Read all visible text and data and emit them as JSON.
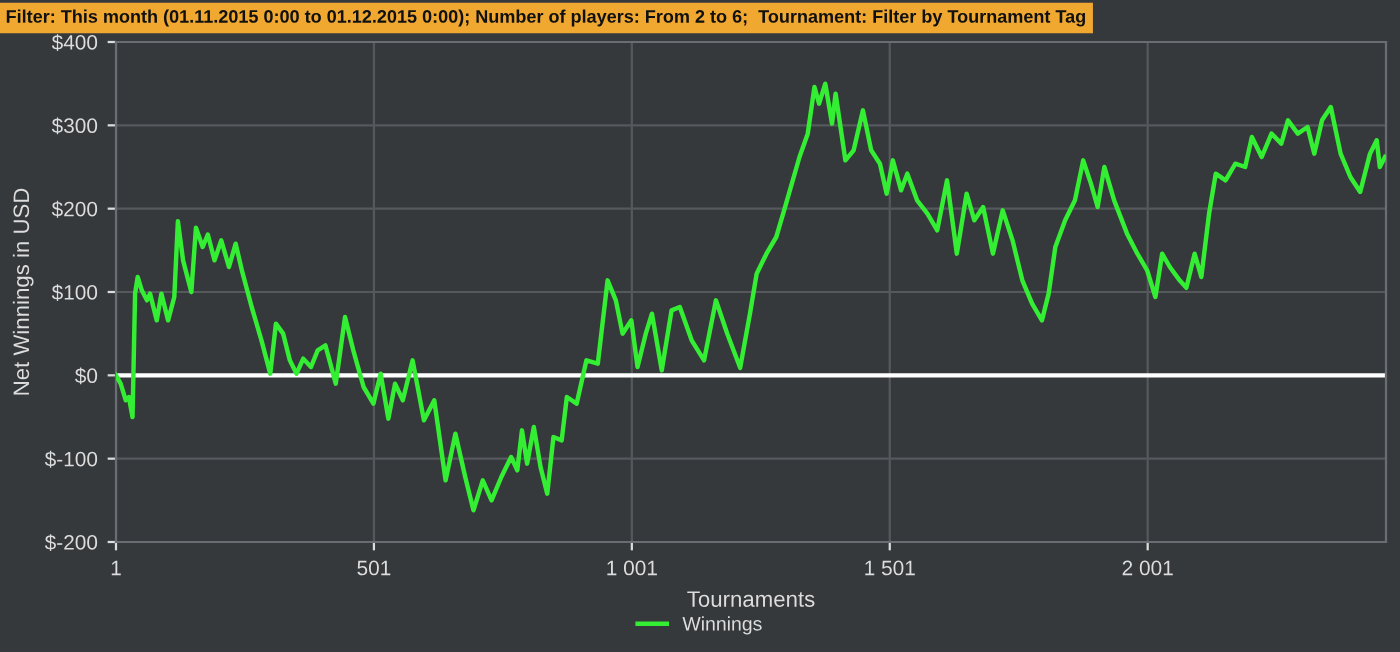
{
  "chart_data": {
    "type": "line",
    "title": "Filter: This month (01.11.2015 0:00 to 01.12.2015 0:00); Number of players: From 2 to 6;  Tournament: Filter by Tournament Tag",
    "xlabel": "Tournaments",
    "ylabel": "Net Winnings in USD",
    "series": [
      {
        "name": "Winnings",
        "color": "#33ee33",
        "x": [
          1,
          10,
          20,
          26,
          33,
          38,
          43,
          51,
          61,
          67,
          80,
          89,
          102,
          114,
          121,
          131,
          147,
          156,
          169,
          179,
          192,
          205,
          220,
          233,
          245,
          264,
          283,
          300,
          311,
          325,
          338,
          351,
          364,
          379,
          392,
          407,
          427,
          445,
          461,
          481,
          500,
          514,
          529,
          542,
          557,
          576,
          598,
          618,
          640,
          659,
          678,
          694,
          712,
          729,
          748,
          767,
          779,
          788,
          798,
          811,
          824,
          837,
          849,
          865,
          875,
          894,
          913,
          935,
          954,
          970,
          983,
          1000,
          1012,
          1028,
          1040,
          1059,
          1078,
          1094,
          1117,
          1141,
          1164,
          1186,
          1211,
          1230,
          1243,
          1262,
          1281,
          1300,
          1326,
          1342,
          1355,
          1364,
          1376,
          1389,
          1396,
          1415,
          1431,
          1449,
          1465,
          1482,
          1495,
          1507,
          1523,
          1535,
          1554,
          1574,
          1593,
          1612,
          1631,
          1650,
          1665,
          1682,
          1701,
          1720,
          1739,
          1758,
          1777,
          1796,
          1809,
          1822,
          1841,
          1860,
          1876,
          1891,
          1904,
          1917,
          1936,
          1961,
          1981,
          2000,
          2016,
          2029,
          2044,
          2063,
          2076,
          2092,
          2105,
          2120,
          2133,
          2152,
          2171,
          2190,
          2203,
          2222,
          2241,
          2260,
          2273,
          2292,
          2311,
          2324,
          2339,
          2356,
          2375,
          2394,
          2413,
          2432,
          2445,
          2451,
          2461
        ],
        "values": [
          0,
          -10,
          -30,
          -26,
          -50,
          98,
          118,
          102,
          90,
          98,
          66,
          98,
          66,
          94,
          185,
          138,
          100,
          177,
          154,
          169,
          138,
          162,
          130,
          158,
          126,
          82,
          42,
          2,
          62,
          50,
          18,
          2,
          20,
          10,
          30,
          36,
          -10,
          70,
          30,
          -14,
          -34,
          2,
          -52,
          -10,
          -30,
          18,
          -54,
          -30,
          -126,
          -70,
          -122,
          -162,
          -126,
          -150,
          -122,
          -98,
          -114,
          -66,
          -106,
          -62,
          -110,
          -142,
          -74,
          -78,
          -26,
          -34,
          18,
          14,
          114,
          90,
          50,
          66,
          10,
          50,
          74,
          6,
          78,
          82,
          42,
          18,
          90,
          50,
          9,
          74,
          122,
          146,
          166,
          206,
          262,
          290,
          346,
          326,
          350,
          302,
          338,
          258,
          270,
          318,
          270,
          254,
          218,
          258,
          222,
          242,
          210,
          194,
          174,
          234,
          146,
          218,
          186,
          202,
          146,
          198,
          162,
          114,
          86,
          66,
          98,
          154,
          186,
          210,
          258,
          230,
          202,
          250,
          210,
          170,
          146,
          126,
          94,
          146,
          130,
          114,
          105,
          146,
          118,
          194,
          242,
          234,
          254,
          250,
          286,
          262,
          290,
          278,
          306,
          290,
          298,
          266,
          306,
          322,
          266,
          238,
          220,
          266,
          282,
          250,
          262
        ]
      }
    ],
    "xlim": [
      1,
      2463
    ],
    "xticks": [
      1,
      501,
      {
        "value": 1001,
        "label": "1 001"
      },
      {
        "value": 1501,
        "label": "1 501"
      },
      {
        "value": 2001,
        "label": "2 001"
      }
    ],
    "ylim": [
      -200,
      400
    ],
    "yticks": [
      {
        "value": -200,
        "label": "$-200"
      },
      {
        "value": -100,
        "label": "$-100"
      },
      {
        "value": 0,
        "label": "$0"
      },
      {
        "value": 100,
        "label": "$100"
      },
      {
        "value": 200,
        "label": "$200"
      },
      {
        "value": 300,
        "label": "$300"
      },
      {
        "value": 400,
        "label": "$400"
      }
    ],
    "ref_lines": [
      {
        "axis": "y",
        "value": 0,
        "color": "#ffffff"
      }
    ],
    "grid": true,
    "legend": "bottom",
    "marker": "none",
    "line_style": "solid"
  }
}
